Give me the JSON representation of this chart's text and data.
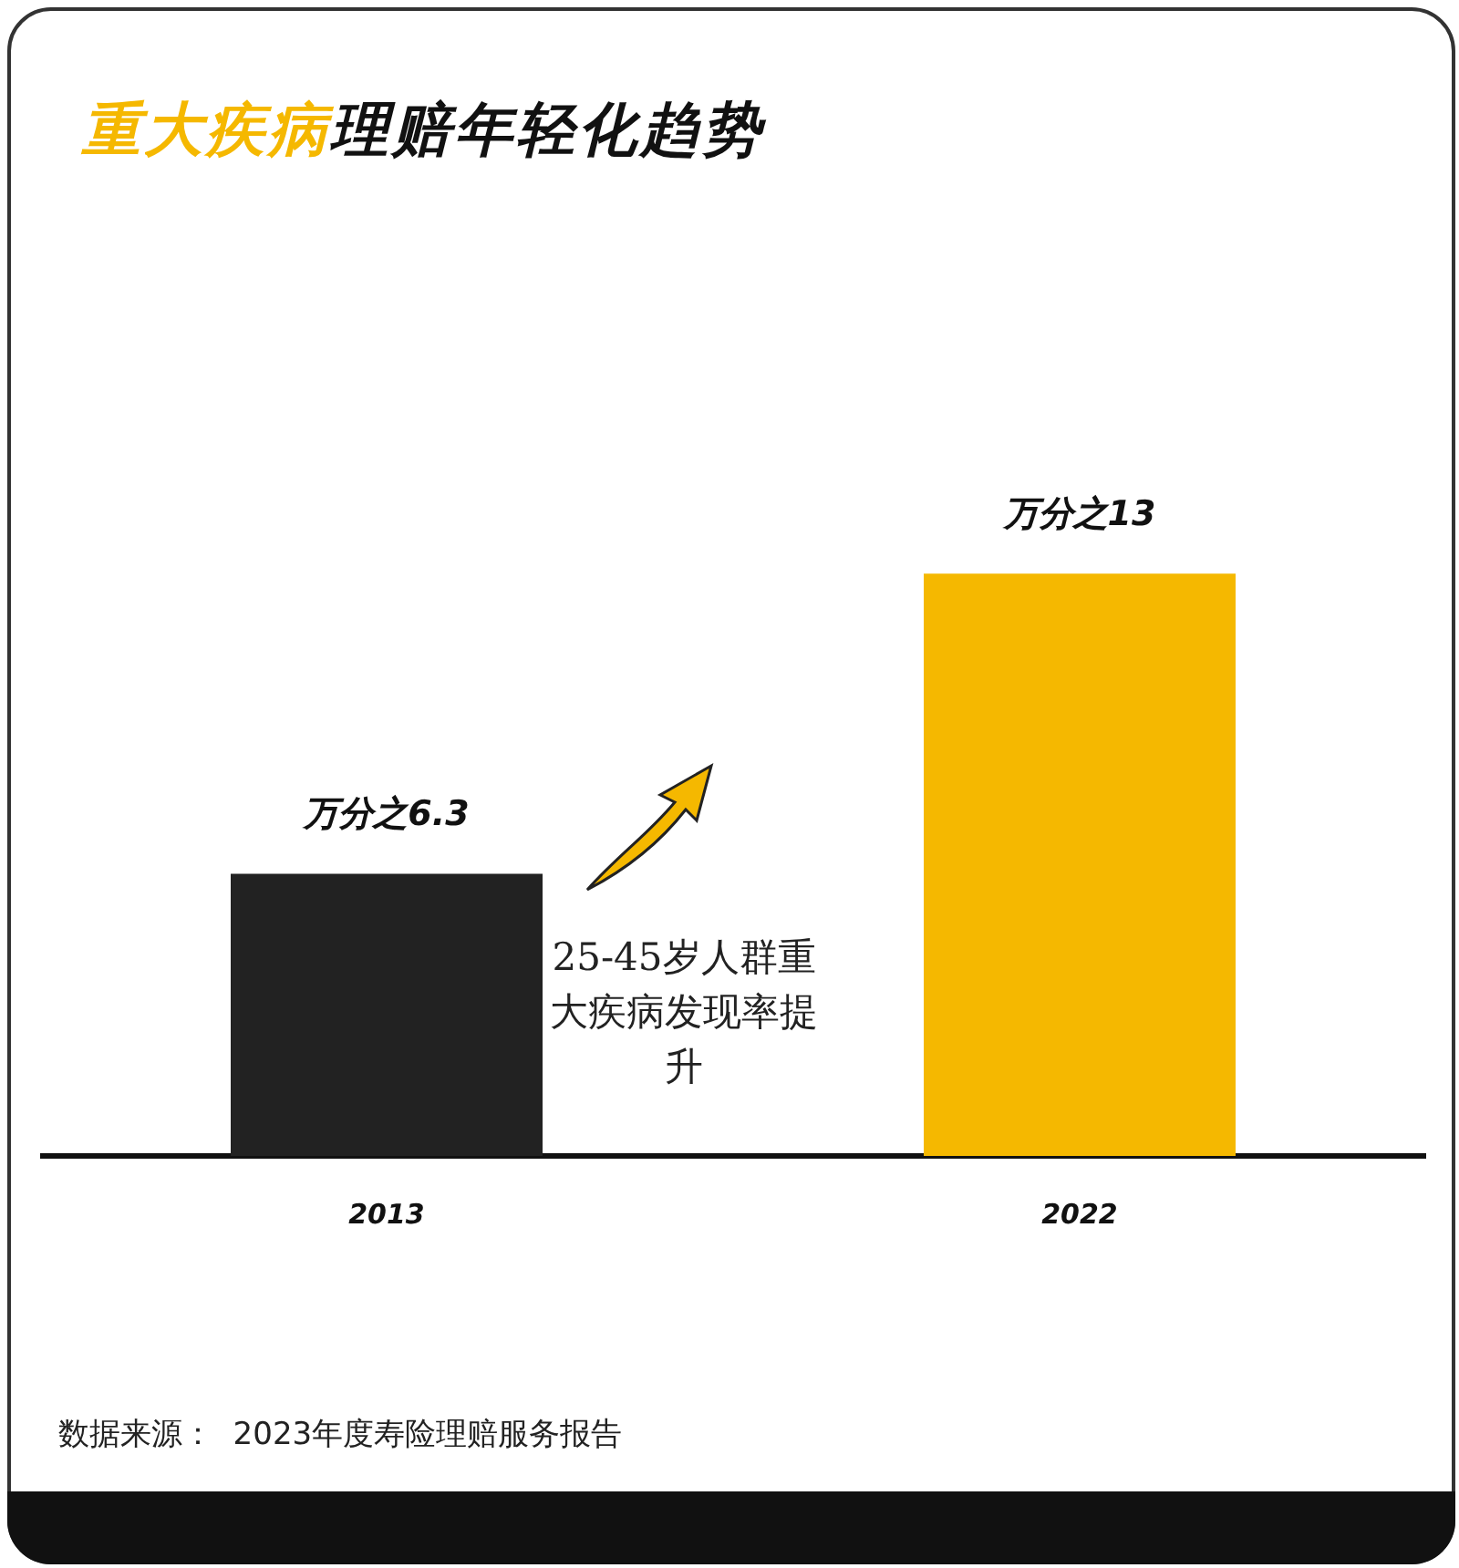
{
  "chart_data": {
    "type": "bar",
    "title": "重大疾病理赔年轻化趋势",
    "categories": [
      "2013",
      "2022"
    ],
    "values": [
      6.3,
      13
    ],
    "colors": [
      "#222222",
      "#f5b800"
    ],
    "value_labels": [
      "万分之6.3",
      "万分之13"
    ],
    "annotations": [
      "25-45岁人群重大疾病发现率提升",
      "数据来源：  2023年度寿险理赔服务报告"
    ],
    "grid": false,
    "legend": false
  }
}
